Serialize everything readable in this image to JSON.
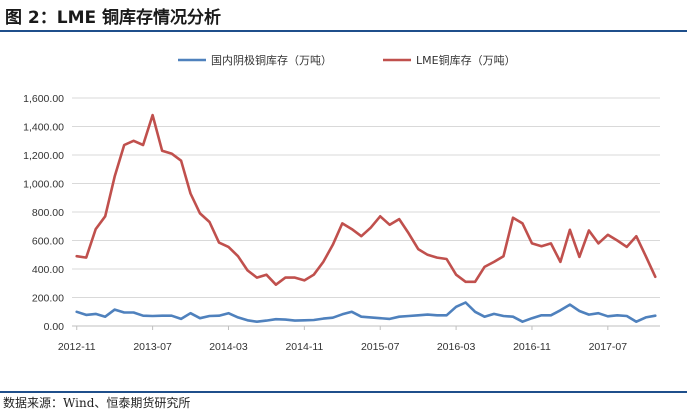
{
  "figure": {
    "title": "图 2：LME 铜库存情况分析",
    "source": "数据来源：Wind、恒泰期货研究所"
  },
  "colors": {
    "series1": "#4f81bd",
    "series2": "#c0504d",
    "grid": "#d9d9d9",
    "axis": "#bfbfbf",
    "rule": "#1f4f8b"
  },
  "chart_data": {
    "type": "line",
    "title": "",
    "xlabel": "",
    "ylabel": "",
    "ylim": [
      0,
      1600
    ],
    "yticks": [
      "0.00",
      "200.00",
      "400.00",
      "600.00",
      "800.00",
      "1,000.00",
      "1,200.00",
      "1,400.00",
      "1,600.00"
    ],
    "xticks": [
      "2012-11",
      "2013-07",
      "2014-03",
      "2014-11",
      "2015-07",
      "2016-03",
      "2016-11",
      "2017-07"
    ],
    "grid": true,
    "legend": "top-center",
    "x": [
      "2012-11",
      "2012-12",
      "2013-01",
      "2013-02",
      "2013-03",
      "2013-04",
      "2013-05",
      "2013-06",
      "2013-07",
      "2013-08",
      "2013-09",
      "2013-10",
      "2013-11",
      "2013-12",
      "2014-01",
      "2014-02",
      "2014-03",
      "2014-04",
      "2014-05",
      "2014-06",
      "2014-07",
      "2014-08",
      "2014-09",
      "2014-10",
      "2014-11",
      "2014-12",
      "2015-01",
      "2015-02",
      "2015-03",
      "2015-04",
      "2015-05",
      "2015-06",
      "2015-07",
      "2015-08",
      "2015-09",
      "2015-10",
      "2015-11",
      "2015-12",
      "2016-01",
      "2016-02",
      "2016-03",
      "2016-04",
      "2016-05",
      "2016-06",
      "2016-07",
      "2016-08",
      "2016-09",
      "2016-10",
      "2016-11",
      "2016-12",
      "2017-01",
      "2017-02",
      "2017-03",
      "2017-04",
      "2017-05",
      "2017-06",
      "2017-07",
      "2017-08",
      "2017-09",
      "2017-10",
      "2017-11",
      "2017-12"
    ],
    "series": [
      {
        "name": "国内阴极铜库存（万吨）",
        "values": [
          100,
          78,
          85,
          65,
          115,
          95,
          95,
          72,
          70,
          72,
          72,
          50,
          90,
          55,
          70,
          72,
          90,
          60,
          40,
          30,
          38,
          48,
          45,
          38,
          40,
          42,
          52,
          58,
          82,
          100,
          65,
          60,
          55,
          50,
          65,
          70,
          75,
          80,
          75,
          75,
          135,
          165,
          100,
          65,
          85,
          70,
          65,
          30,
          55,
          75,
          75,
          110,
          150,
          105,
          80,
          90,
          68,
          75,
          70,
          30,
          60,
          72
        ]
      },
      {
        "name": "LME铜库存（万吨）",
        "values": [
          490,
          480,
          680,
          770,
          1050,
          1270,
          1300,
          1270,
          1480,
          1230,
          1210,
          1160,
          930,
          790,
          730,
          585,
          555,
          490,
          390,
          340,
          360,
          290,
          340,
          340,
          320,
          360,
          450,
          570,
          720,
          680,
          630,
          690,
          770,
          710,
          750,
          650,
          540,
          500,
          480,
          470,
          360,
          310,
          310,
          415,
          450,
          490,
          760,
          720,
          580,
          560,
          580,
          450,
          675,
          485,
          670,
          580,
          640,
          600,
          555,
          630,
          490,
          345
        ]
      }
    ]
  }
}
